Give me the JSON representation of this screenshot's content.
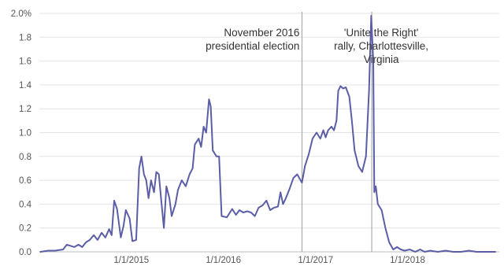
{
  "chart_data": {
    "type": "line",
    "title": "",
    "xlabel": "",
    "ylabel": "",
    "ylim": [
      0,
      2.0
    ],
    "y_unit": "%",
    "y_ticks": [
      {
        "value": 0.0,
        "label": "0.0"
      },
      {
        "value": 0.2,
        "label": "0.2"
      },
      {
        "value": 0.4,
        "label": "0.4"
      },
      {
        "value": 0.6,
        "label": "0.6"
      },
      {
        "value": 0.8,
        "label": "0.8"
      },
      {
        "value": 1.0,
        "label": "1.0"
      },
      {
        "value": 1.2,
        "label": "1.2"
      },
      {
        "value": 1.4,
        "label": "1.4"
      },
      {
        "value": 1.6,
        "label": "1.6"
      },
      {
        "value": 1.8,
        "label": "1.8"
      },
      {
        "value": 2.0,
        "label": "2.0%"
      }
    ],
    "x_range": [
      "2014-01-01",
      "2018-12-31"
    ],
    "x_ticks": [
      {
        "date": "2015-01-01",
        "label": "1/1/2015"
      },
      {
        "date": "2016-01-01",
        "label": "1/1/2016"
      },
      {
        "date": "2017-01-01",
        "label": "1/1/2017"
      },
      {
        "date": "2018-01-01",
        "label": "1/1/2018"
      }
    ],
    "grid": "horizontal",
    "legend": "none",
    "color": "#5b5ea6",
    "annotations": [
      {
        "date": "2016-11-08",
        "lines": [
          "November 2016",
          "presidential election"
        ],
        "align": "end"
      },
      {
        "date": "2017-08-12",
        "lines": [
          "'Unite the Right'",
          "rally, Charlottesville,",
          "Virginia"
        ],
        "align": "middle"
      }
    ],
    "series": [
      {
        "points": [
          [
            "2014-01-05",
            0.0
          ],
          [
            "2014-02-05",
            0.01
          ],
          [
            "2014-03-05",
            0.01
          ],
          [
            "2014-04-05",
            0.02
          ],
          [
            "2014-04-20",
            0.06
          ],
          [
            "2014-05-05",
            0.05
          ],
          [
            "2014-05-20",
            0.04
          ],
          [
            "2014-06-05",
            0.06
          ],
          [
            "2014-06-20",
            0.04
          ],
          [
            "2014-07-05",
            0.08
          ],
          [
            "2014-07-20",
            0.1
          ],
          [
            "2014-08-05",
            0.14
          ],
          [
            "2014-08-20",
            0.1
          ],
          [
            "2014-09-05",
            0.16
          ],
          [
            "2014-09-20",
            0.12
          ],
          [
            "2014-10-05",
            0.19
          ],
          [
            "2014-10-15",
            0.14
          ],
          [
            "2014-10-25",
            0.43
          ],
          [
            "2014-11-05",
            0.36
          ],
          [
            "2014-11-20",
            0.12
          ],
          [
            "2014-12-01",
            0.22
          ],
          [
            "2014-12-10",
            0.35
          ],
          [
            "2014-12-25",
            0.28
          ],
          [
            "2015-01-05",
            0.09
          ],
          [
            "2015-01-20",
            0.1
          ],
          [
            "2015-02-01",
            0.7
          ],
          [
            "2015-02-10",
            0.8
          ],
          [
            "2015-02-20",
            0.65
          ],
          [
            "2015-03-01",
            0.6
          ],
          [
            "2015-03-10",
            0.45
          ],
          [
            "2015-03-20",
            0.6
          ],
          [
            "2015-04-01",
            0.5
          ],
          [
            "2015-04-10",
            0.67
          ],
          [
            "2015-04-20",
            0.65
          ],
          [
            "2015-05-01",
            0.4
          ],
          [
            "2015-05-10",
            0.2
          ],
          [
            "2015-05-20",
            0.55
          ],
          [
            "2015-06-01",
            0.45
          ],
          [
            "2015-06-10",
            0.3
          ],
          [
            "2015-06-25",
            0.4
          ],
          [
            "2015-07-05",
            0.52
          ],
          [
            "2015-07-20",
            0.6
          ],
          [
            "2015-08-05",
            0.55
          ],
          [
            "2015-08-20",
            0.65
          ],
          [
            "2015-09-01",
            0.7
          ],
          [
            "2015-09-10",
            0.9
          ],
          [
            "2015-09-25",
            0.95
          ],
          [
            "2015-10-05",
            0.88
          ],
          [
            "2015-10-15",
            1.05
          ],
          [
            "2015-10-25",
            1.0
          ],
          [
            "2015-11-05",
            1.28
          ],
          [
            "2015-11-12",
            1.22
          ],
          [
            "2015-11-20",
            0.85
          ],
          [
            "2015-12-05",
            0.8
          ],
          [
            "2015-12-15",
            0.8
          ],
          [
            "2015-12-25",
            0.3
          ],
          [
            "2016-01-15",
            0.29
          ],
          [
            "2016-02-05",
            0.36
          ],
          [
            "2016-02-20",
            0.31
          ],
          [
            "2016-03-05",
            0.35
          ],
          [
            "2016-03-20",
            0.33
          ],
          [
            "2016-04-05",
            0.34
          ],
          [
            "2016-04-20",
            0.33
          ],
          [
            "2016-05-05",
            0.3
          ],
          [
            "2016-05-20",
            0.37
          ],
          [
            "2016-06-05",
            0.39
          ],
          [
            "2016-06-20",
            0.43
          ],
          [
            "2016-07-05",
            0.35
          ],
          [
            "2016-07-20",
            0.37
          ],
          [
            "2016-08-05",
            0.38
          ],
          [
            "2016-08-15",
            0.5
          ],
          [
            "2016-08-25",
            0.4
          ],
          [
            "2016-09-05",
            0.45
          ],
          [
            "2016-09-20",
            0.53
          ],
          [
            "2016-10-05",
            0.62
          ],
          [
            "2016-10-20",
            0.65
          ],
          [
            "2016-11-08",
            0.58
          ],
          [
            "2016-11-20",
            0.72
          ],
          [
            "2016-12-05",
            0.82
          ],
          [
            "2016-12-20",
            0.95
          ],
          [
            "2017-01-05",
            1.0
          ],
          [
            "2017-01-20",
            0.95
          ],
          [
            "2017-02-01",
            1.02
          ],
          [
            "2017-02-10",
            0.96
          ],
          [
            "2017-02-20",
            1.02
          ],
          [
            "2017-03-05",
            1.05
          ],
          [
            "2017-03-15",
            1.02
          ],
          [
            "2017-03-25",
            1.1
          ],
          [
            "2017-04-01",
            1.35
          ],
          [
            "2017-04-10",
            1.39
          ],
          [
            "2017-04-20",
            1.37
          ],
          [
            "2017-05-01",
            1.38
          ],
          [
            "2017-05-15",
            1.3
          ],
          [
            "2017-05-25",
            1.1
          ],
          [
            "2017-06-05",
            0.85
          ],
          [
            "2017-06-20",
            0.72
          ],
          [
            "2017-07-05",
            0.67
          ],
          [
            "2017-07-20",
            0.8
          ],
          [
            "2017-08-01",
            1.35
          ],
          [
            "2017-08-10",
            1.98
          ],
          [
            "2017-08-18",
            1.6
          ],
          [
            "2017-08-22",
            0.5
          ],
          [
            "2017-08-28",
            0.55
          ],
          [
            "2017-09-05",
            0.4
          ],
          [
            "2017-09-20",
            0.35
          ],
          [
            "2017-10-05",
            0.2
          ],
          [
            "2017-10-20",
            0.08
          ],
          [
            "2017-11-05",
            0.02
          ],
          [
            "2017-11-20",
            0.04
          ],
          [
            "2017-12-05",
            0.02
          ],
          [
            "2017-12-20",
            0.01
          ],
          [
            "2018-01-10",
            0.02
          ],
          [
            "2018-02-01",
            0.0
          ],
          [
            "2018-02-20",
            0.02
          ],
          [
            "2018-03-10",
            0.0
          ],
          [
            "2018-04-01",
            0.01
          ],
          [
            "2018-05-01",
            0.0
          ],
          [
            "2018-06-01",
            0.01
          ],
          [
            "2018-07-01",
            0.0
          ],
          [
            "2018-08-01",
            0.0
          ],
          [
            "2018-09-01",
            0.01
          ],
          [
            "2018-10-01",
            0.0
          ],
          [
            "2018-11-01",
            0.0
          ],
          [
            "2018-12-15",
            0.0
          ]
        ]
      }
    ]
  }
}
